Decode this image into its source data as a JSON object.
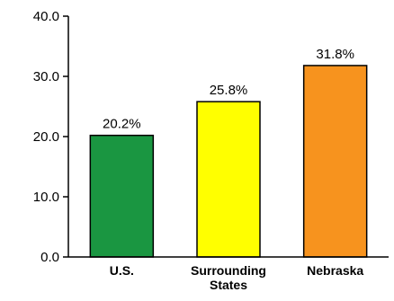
{
  "chart_data": {
    "type": "bar",
    "categories": [
      "U.S.",
      "Surrounding States",
      "Nebraska"
    ],
    "category_lines": [
      [
        "U.S."
      ],
      [
        "Surrounding",
        "States"
      ],
      [
        "Nebraska"
      ]
    ],
    "values": [
      20.2,
      25.8,
      31.8
    ],
    "data_labels": [
      "20.2%",
      "25.8%",
      "31.8%"
    ],
    "colors": [
      "#1a9641",
      "#ffff00",
      "#f7931e"
    ],
    "ylim": [
      0,
      40
    ],
    "yticks": [
      0,
      10,
      20,
      30,
      40
    ],
    "ytick_labels": [
      "0.0",
      "10.0",
      "20.0",
      "30.0",
      "40.0"
    ],
    "grid": false,
    "legend": "none"
  }
}
